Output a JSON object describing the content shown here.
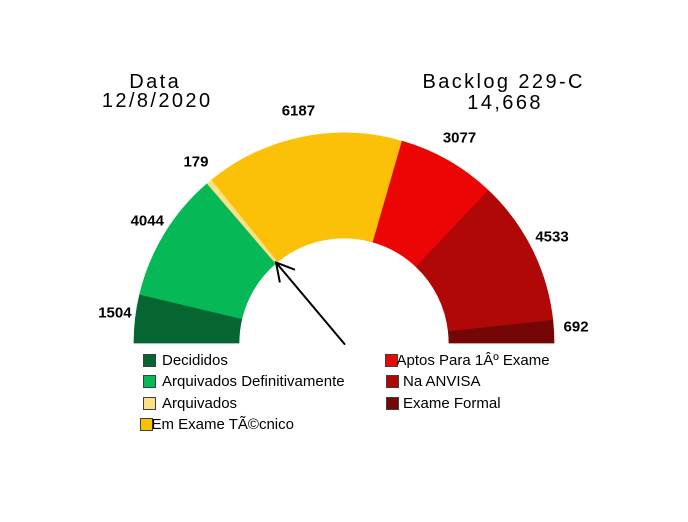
{
  "titles": {
    "left": {
      "line1": "Data",
      "line2": "12/8/2020"
    },
    "right": {
      "line1": "Backlog 229-C",
      "line2": "14,668"
    }
  },
  "chart_data": {
    "type": "gauge-half-donut",
    "description": "Half-doughnut gauge of patent backlog status counts; arrow marks boundary after archived segments",
    "start_angle_deg": 180,
    "end_angle_deg": 0,
    "total": 20216,
    "segments": [
      {
        "label": "Decididos",
        "value": 1504,
        "color": "#056632"
      },
      {
        "label": "Arquivados Definitivamente",
        "value": 4044,
        "color": "#07B857"
      },
      {
        "label": "Arquivados",
        "value": 179,
        "color": "#FAE087"
      },
      {
        "label": "Em Exame TÃ©cnico",
        "value": 6187,
        "color": "#FBC108"
      },
      {
        "label": "Aptos Para 1Âº Exame",
        "value": 3077,
        "color": "#EC0505"
      },
      {
        "label": "Na ANVISA",
        "value": 4533,
        "color": "#B00707"
      },
      {
        "label": "Exame Formal",
        "value": 692,
        "color": "#740606"
      }
    ],
    "legend": {
      "left_indices": [
        0,
        1,
        2,
        3
      ],
      "right_indices": [
        4,
        5,
        6
      ]
    },
    "annotation_arrow": {
      "points_to": "inner edge between Arquivados and Em Exame TÃ©cnico",
      "color": "#000000"
    }
  }
}
